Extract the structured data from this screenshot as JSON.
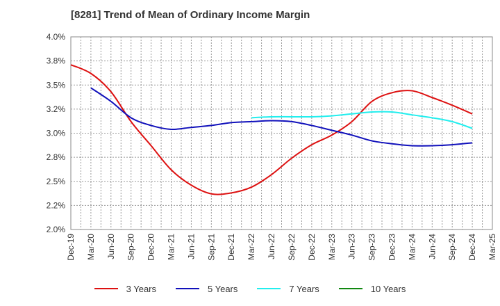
{
  "chart_data": {
    "type": "line",
    "title": "[8281]  Trend of Mean of Ordinary Income Margin",
    "xlabel": "",
    "ylabel": "",
    "ylim": [
      2.0,
      4.0
    ],
    "yticks": [
      "2.0%",
      "2.2%",
      "2.5%",
      "2.8%",
      "3.0%",
      "3.2%",
      "3.5%",
      "3.8%",
      "4.0%"
    ],
    "categories": [
      "Dec-19",
      "Mar-20",
      "Jun-20",
      "Sep-20",
      "Dec-20",
      "Mar-21",
      "Jun-21",
      "Sep-21",
      "Dec-21",
      "Mar-22",
      "Jun-22",
      "Sep-22",
      "Dec-22",
      "Mar-23",
      "Jun-23",
      "Sep-23",
      "Dec-23",
      "Mar-24",
      "Jun-24",
      "Sep-24",
      "Dec-24",
      "Mar-25"
    ],
    "grid": true,
    "legend_position": "bottom",
    "series": [
      {
        "name": "3 Years",
        "color": "#dd1111",
        "values": [
          3.71,
          3.62,
          3.43,
          3.12,
          2.87,
          2.62,
          2.46,
          2.37,
          2.38,
          2.44,
          2.57,
          2.74,
          2.88,
          2.98,
          3.12,
          3.33,
          3.42,
          3.44,
          3.37,
          3.29,
          3.2,
          null
        ]
      },
      {
        "name": "5 Years",
        "color": "#1111bb",
        "values": [
          null,
          3.47,
          3.33,
          3.16,
          3.08,
          3.04,
          3.06,
          3.08,
          3.11,
          3.12,
          3.13,
          3.12,
          3.08,
          3.03,
          2.98,
          2.92,
          2.89,
          2.87,
          2.87,
          2.88,
          2.9,
          null
        ]
      },
      {
        "name": "7 Years",
        "color": "#22eeee",
        "values": [
          null,
          null,
          null,
          null,
          null,
          null,
          null,
          null,
          null,
          3.16,
          3.17,
          3.17,
          3.17,
          3.18,
          3.2,
          3.22,
          3.22,
          3.19,
          3.16,
          3.12,
          3.05,
          null
        ]
      },
      {
        "name": "10 Years",
        "color": "#118811",
        "values": [
          null,
          null,
          null,
          null,
          null,
          null,
          null,
          null,
          null,
          null,
          null,
          null,
          null,
          null,
          null,
          null,
          null,
          null,
          null,
          null,
          null,
          null
        ]
      }
    ]
  }
}
